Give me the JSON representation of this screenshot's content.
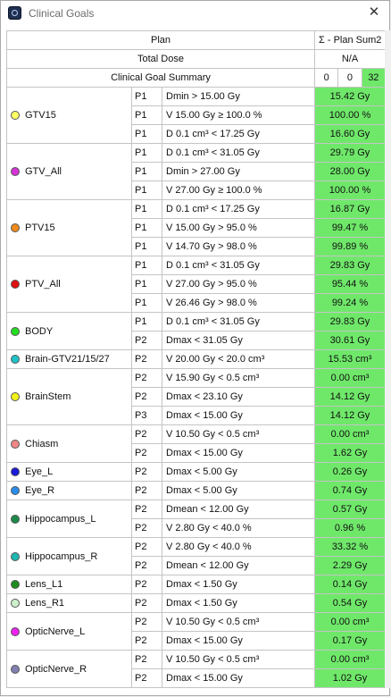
{
  "window": {
    "title": "Clinical Goals",
    "close_glyph": "✕"
  },
  "header": {
    "plan_label": "Plan",
    "plan_sum": "Σ - Plan Sum2",
    "total_dose_label": "Total Dose",
    "total_dose_value": "N/A",
    "summary_label": "Clinical Goal Summary",
    "counts": [
      "0",
      "0",
      "32"
    ]
  },
  "groups": [
    {
      "roi": "GTV15",
      "color": "#ffff66",
      "goals": [
        {
          "plan": "P1",
          "goal": "Dmin > 15.00 Gy",
          "value": "15.42 Gy"
        },
        {
          "plan": "P1",
          "goal": "V 15.00 Gy ≥ 100.0 %",
          "value": "100.00 %"
        },
        {
          "plan": "P1",
          "goal": "D 0.1 cm³ < 17.25 Gy",
          "value": "16.60 Gy"
        }
      ]
    },
    {
      "roi": "GTV_All",
      "color": "#d633d6",
      "goals": [
        {
          "plan": "P1",
          "goal": "D 0.1 cm³ < 31.05 Gy",
          "value": "29.79 Gy"
        },
        {
          "plan": "P1",
          "goal": "Dmin > 27.00 Gy",
          "value": "28.00 Gy"
        },
        {
          "plan": "P1",
          "goal": "V 27.00 Gy ≥ 100.0 %",
          "value": "100.00 %"
        }
      ]
    },
    {
      "roi": "PTV15",
      "color": "#f08a1c",
      "goals": [
        {
          "plan": "P1",
          "goal": "D 0.1 cm³ < 17.25 Gy",
          "value": "16.87 Gy"
        },
        {
          "plan": "P1",
          "goal": "V 15.00 Gy > 95.0 %",
          "value": "99.47 %"
        },
        {
          "plan": "P1",
          "goal": "V 14.70 Gy > 98.0 %",
          "value": "99.89 %"
        }
      ]
    },
    {
      "roi": "PTV_All",
      "color": "#e01010",
      "goals": [
        {
          "plan": "P1",
          "goal": "D 0.1 cm³ < 31.05 Gy",
          "value": "29.83 Gy"
        },
        {
          "plan": "P1",
          "goal": "V 27.00 Gy > 95.0 %",
          "value": "95.44 %"
        },
        {
          "plan": "P1",
          "goal": "V 26.46 Gy > 98.0 %",
          "value": "99.24 %"
        }
      ]
    },
    {
      "roi": "BODY",
      "color": "#22dd22",
      "goals": [
        {
          "plan": "P1",
          "goal": "D 0.1 cm³ < 31.05 Gy",
          "value": "29.83 Gy"
        },
        {
          "plan": "P2",
          "goal": "Dmax < 31.05 Gy",
          "value": "30.61 Gy"
        }
      ]
    },
    {
      "roi": "Brain-GTV21/15/27",
      "color": "#20c0c8",
      "goals": [
        {
          "plan": "P2",
          "goal": "V 20.00 Gy < 20.0 cm³",
          "value": "15.53 cm³"
        }
      ]
    },
    {
      "roi": "BrainStem",
      "color": "#f2f21a",
      "goals": [
        {
          "plan": "P2",
          "goal": "V 15.90 Gy < 0.5 cm³",
          "value": "0.00 cm³"
        },
        {
          "plan": "P2",
          "goal": "Dmax < 23.10 Gy",
          "value": "14.12 Gy"
        },
        {
          "plan": "P3",
          "goal": "Dmax < 15.00 Gy",
          "value": "14.12 Gy"
        }
      ]
    },
    {
      "roi": "Chiasm",
      "color": "#f08888",
      "goals": [
        {
          "plan": "P2",
          "goal": "V 10.50 Gy < 0.5 cm³",
          "value": "0.00 cm³"
        },
        {
          "plan": "P2",
          "goal": "Dmax < 15.00 Gy",
          "value": "1.62 Gy"
        }
      ]
    },
    {
      "roi": "Eye_L",
      "color": "#1a1ad8",
      "goals": [
        {
          "plan": "P2",
          "goal": "Dmax < 5.00 Gy",
          "value": "0.26 Gy"
        }
      ]
    },
    {
      "roi": "Eye_R",
      "color": "#2a8ce8",
      "goals": [
        {
          "plan": "P2",
          "goal": "Dmax < 5.00 Gy",
          "value": "0.74 Gy"
        }
      ]
    },
    {
      "roi": "Hippocampus_L",
      "color": "#1e8a4a",
      "goals": [
        {
          "plan": "P2",
          "goal": "Dmean < 12.00 Gy",
          "value": "0.57 Gy"
        },
        {
          "plan": "P2",
          "goal": "V 2.80 Gy < 40.0 %",
          "value": "0.96 %"
        }
      ]
    },
    {
      "roi": "Hippocampus_R",
      "color": "#1fb8b0",
      "goals": [
        {
          "plan": "P2",
          "goal": "V 2.80 Gy < 40.0 %",
          "value": "33.32 %"
        },
        {
          "plan": "P2",
          "goal": "Dmean < 12.00 Gy",
          "value": "2.29 Gy"
        }
      ]
    },
    {
      "roi": "Lens_L1",
      "color": "#1e8c1e",
      "goals": [
        {
          "plan": "P2",
          "goal": "Dmax < 1.50 Gy",
          "value": "0.14 Gy"
        }
      ]
    },
    {
      "roi": "Lens_R1",
      "color": "#ccf2cc",
      "goals": [
        {
          "plan": "P2",
          "goal": "Dmax < 1.50 Gy",
          "value": "0.54 Gy"
        }
      ]
    },
    {
      "roi": "OpticNerve_L",
      "color": "#ee22ee",
      "goals": [
        {
          "plan": "P2",
          "goal": "V 10.50 Gy < 0.5 cm³",
          "value": "0.00 cm³"
        },
        {
          "plan": "P2",
          "goal": "Dmax < 15.00 Gy",
          "value": "0.17 Gy"
        }
      ]
    },
    {
      "roi": "OpticNerve_R",
      "color": "#8080b0",
      "goals": [
        {
          "plan": "P2",
          "goal": "V 10.50 Gy < 0.5 cm³",
          "value": "0.00 cm³"
        },
        {
          "plan": "P2",
          "goal": "Dmax < 15.00 Gy",
          "value": "1.02 Gy"
        }
      ]
    }
  ]
}
